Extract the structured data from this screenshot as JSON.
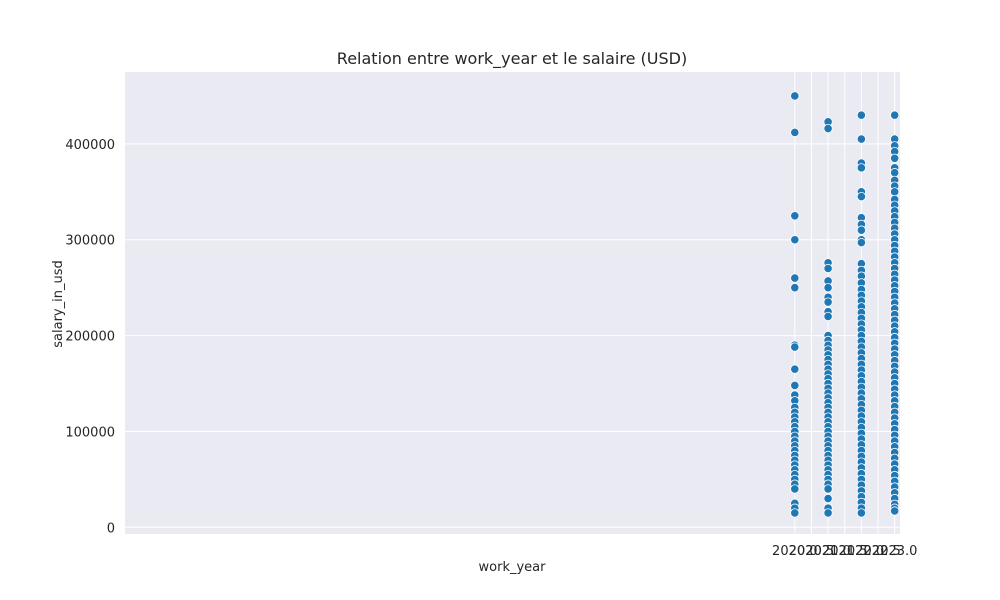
{
  "chart_data": {
    "type": "scatter",
    "title": "Relation entre work_year et le salaire (USD)",
    "xlabel": "work_year",
    "ylabel": "salary_in_usd",
    "xlim": [
      1999.88,
      2023.16
    ],
    "ylim": [
      -7000,
      475000
    ],
    "x_ticks": [
      2020.0,
      2020.5,
      2021.0,
      2021.5,
      2022.0,
      2022.5,
      2023.0
    ],
    "x_tick_labels": [
      "2020.0",
      "2020.5",
      "2021.0",
      "2021.5",
      "2022.0",
      "2022.5",
      "2023.0"
    ],
    "y_ticks": [
      0,
      100000,
      200000,
      300000,
      400000
    ],
    "y_tick_labels": [
      "0",
      "100000",
      "200000",
      "300000",
      "400000"
    ],
    "grid": true,
    "background_color": "#eaeaf2",
    "point_color": "#1f77b4",
    "series": [
      {
        "x_value": 2020,
        "salaries": [
          450000,
          412000,
          325000,
          300000,
          260000,
          250000,
          190000,
          188000,
          165000,
          148000,
          138000,
          132000,
          125000,
          120000,
          115000,
          110000,
          105000,
          100000,
          95000,
          90000,
          85000,
          80000,
          75000,
          70000,
          65000,
          60000,
          55000,
          50000,
          45000,
          40000,
          25000,
          20000,
          15000
        ]
      },
      {
        "x_value": 2021,
        "salaries": [
          423000,
          416000,
          276000,
          270000,
          257000,
          250000,
          240000,
          235000,
          225000,
          220000,
          200000,
          195000,
          190000,
          185000,
          180000,
          175000,
          170000,
          165000,
          160000,
          155000,
          150000,
          145000,
          140000,
          135000,
          130000,
          125000,
          120000,
          115000,
          110000,
          105000,
          100000,
          95000,
          90000,
          85000,
          80000,
          75000,
          70000,
          65000,
          60000,
          55000,
          50000,
          45000,
          40000,
          30000,
          20000,
          15000
        ]
      },
      {
        "x_value": 2022,
        "salaries": [
          430000,
          405000,
          380000,
          375000,
          350000,
          345000,
          323000,
          316000,
          310000,
          300000,
          297000,
          275000,
          268000,
          262000,
          255000,
          248000,
          242000,
          236000,
          230000,
          224000,
          218000,
          212000,
          206000,
          200000,
          194000,
          188000,
          182000,
          176000,
          170000,
          164000,
          158000,
          152000,
          146000,
          140000,
          134000,
          128000,
          122000,
          116000,
          110000,
          104000,
          98000,
          92000,
          86000,
          80000,
          74000,
          68000,
          62000,
          56000,
          50000,
          44000,
          38000,
          32000,
          26000,
          20000,
          15000
        ]
      },
      {
        "x_value": 2023,
        "salaries": [
          430000,
          405000,
          398000,
          392000,
          385000,
          375000,
          370000,
          362000,
          356000,
          350000,
          342000,
          336000,
          330000,
          324000,
          318000,
          312000,
          306000,
          300000,
          294000,
          288000,
          282000,
          276000,
          270000,
          264000,
          258000,
          252000,
          246000,
          240000,
          234000,
          228000,
          222000,
          216000,
          210000,
          204000,
          198000,
          192000,
          186000,
          180000,
          174000,
          168000,
          162000,
          156000,
          150000,
          144000,
          138000,
          132000,
          126000,
          120000,
          114000,
          108000,
          102000,
          96000,
          90000,
          84000,
          78000,
          72000,
          66000,
          60000,
          54000,
          48000,
          42000,
          36000,
          30000,
          24000,
          20000,
          17000
        ]
      }
    ]
  }
}
